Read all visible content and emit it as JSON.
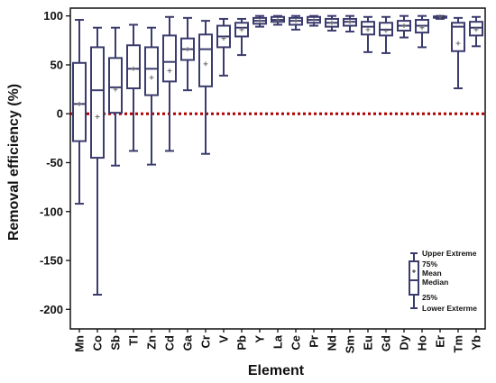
{
  "chart_data": {
    "type": "box",
    "xlabel": "Element",
    "ylabel": "Removal efficiency  (%)",
    "ylim": [
      -220,
      108
    ],
    "yticks": [
      100,
      50,
      0,
      -50,
      -100,
      -150,
      -200
    ],
    "reference_line": {
      "y": 0,
      "style": "dotted",
      "color": "#b00000"
    },
    "box_color": "#3b3b6e",
    "series": [
      {
        "category": "Mn",
        "min": -92,
        "q1": -28,
        "median": 10,
        "q3": 52,
        "max": 96,
        "mean": 10
      },
      {
        "category": "Co",
        "min": -185,
        "q1": -45,
        "median": 24,
        "q3": 68,
        "max": 88,
        "mean": -3
      },
      {
        "category": "Sb",
        "min": -53,
        "q1": 1,
        "median": 27,
        "q3": 57,
        "max": 88,
        "mean": 25
      },
      {
        "category": "Tl",
        "min": -38,
        "q1": 26,
        "median": 46,
        "q3": 70,
        "max": 91,
        "mean": 46
      },
      {
        "category": "Zn",
        "min": -52,
        "q1": 19,
        "median": 46,
        "q3": 68,
        "max": 88,
        "mean": 37
      },
      {
        "category": "Cd",
        "min": -38,
        "q1": 33,
        "median": 53,
        "q3": 80,
        "max": 99,
        "mean": 44
      },
      {
        "category": "Ga",
        "min": 24,
        "q1": 55,
        "median": 66,
        "q3": 77,
        "max": 98,
        "mean": 66
      },
      {
        "category": "Cr",
        "min": -41,
        "q1": 28,
        "median": 66,
        "q3": 81,
        "max": 95,
        "mean": 51
      },
      {
        "category": "V",
        "min": 39,
        "q1": 68,
        "median": 79,
        "q3": 90,
        "max": 97,
        "mean": 77
      },
      {
        "category": "Pb",
        "min": 60,
        "q1": 79,
        "median": 88,
        "q3": 93,
        "max": 97,
        "mean": 86
      },
      {
        "category": "Y",
        "min": 89,
        "q1": 92,
        "median": 95,
        "q3": 98,
        "max": 100,
        "mean": 95
      },
      {
        "category": "La",
        "min": 91,
        "q1": 94,
        "median": 96,
        "q3": 99,
        "max": 100,
        "mean": 96
      },
      {
        "category": "Ce",
        "min": 86,
        "q1": 91,
        "median": 95,
        "q3": 98,
        "max": 100,
        "mean": 95
      },
      {
        "category": "Pr",
        "min": 90,
        "q1": 93,
        "median": 96,
        "q3": 99,
        "max": 100,
        "mean": 96
      },
      {
        "category": "Nd",
        "min": 85,
        "q1": 89,
        "median": 93,
        "q3": 97,
        "max": 100,
        "mean": 93
      },
      {
        "category": "Sm",
        "min": 84,
        "q1": 90,
        "median": 94,
        "q3": 97,
        "max": 100,
        "mean": 94
      },
      {
        "category": "Eu",
        "min": 63,
        "q1": 81,
        "median": 89,
        "q3": 94,
        "max": 99,
        "mean": 86
      },
      {
        "category": "Gd",
        "min": 62,
        "q1": 80,
        "median": 86,
        "q3": 93,
        "max": 99,
        "mean": 85
      },
      {
        "category": "Dy",
        "min": 78,
        "q1": 85,
        "median": 90,
        "q3": 95,
        "max": 100,
        "mean": 90
      },
      {
        "category": "Ho",
        "min": 68,
        "q1": 83,
        "median": 90,
        "q3": 96,
        "max": 100,
        "mean": 88
      },
      {
        "category": "Er",
        "min": 97,
        "q1": 98.5,
        "median": 99,
        "q3": 99.5,
        "max": 100,
        "mean": 99
      },
      {
        "category": "Tm",
        "min": 26,
        "q1": 64,
        "median": 89,
        "q3": 93,
        "max": 98,
        "mean": 72
      },
      {
        "category": "Yb",
        "min": 69,
        "q1": 80,
        "median": 88,
        "q3": 94,
        "max": 99,
        "mean": 86
      }
    ],
    "legend": {
      "position": "bottom-right",
      "labels": {
        "upper": "Upper Extreme",
        "q3": "75%",
        "mean": "Mean",
        "median": "Median",
        "q1": "25%",
        "lower": "Lower Exterme"
      }
    }
  }
}
